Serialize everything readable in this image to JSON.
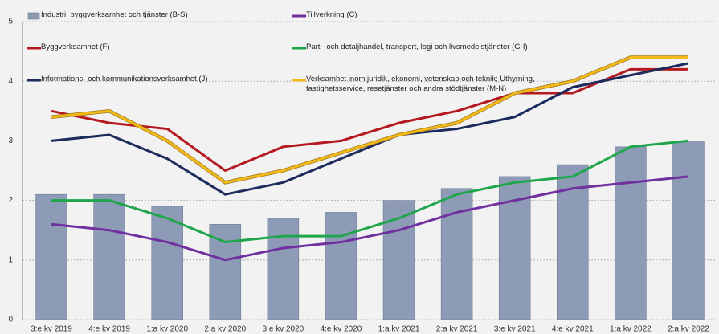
{
  "chart_data": {
    "type": "bar",
    "categories": [
      "3:e kv 2019",
      "4:e kv 2019",
      "1:a kv 2020",
      "2:a kv 2020",
      "3:e kv 2020",
      "4:e kv 2020",
      "1:a kv 2021",
      "2:a kv 2021",
      "3:e kv 2021",
      "4:e kv 2021",
      "1:a kv 2022",
      "2:a kv 2022"
    ],
    "series": [
      {
        "name": "Industri, byggverksamhet och tjänster (B-S)",
        "type": "bar",
        "color": "#8d9bb6",
        "values": [
          2.1,
          2.1,
          1.9,
          1.6,
          1.7,
          1.8,
          2.0,
          2.2,
          2.4,
          2.6,
          2.9,
          3.0
        ]
      },
      {
        "name": "Tillverkning (C)",
        "type": "line",
        "color": "#7030a0",
        "values": [
          1.6,
          1.5,
          1.3,
          1.0,
          1.2,
          1.3,
          1.5,
          1.8,
          2.0,
          2.2,
          2.3,
          2.4
        ]
      },
      {
        "name": "Byggverksamhet (F)",
        "type": "line",
        "color": "#b3191e",
        "values": [
          3.5,
          3.3,
          3.2,
          2.5,
          2.9,
          3.0,
          3.3,
          3.5,
          3.8,
          3.8,
          4.2,
          4.2
        ]
      },
      {
        "name": "Parti- och detaljhandel, transport, logi och livsmedelstjänster (G-I)",
        "type": "line",
        "color": "#1fa64a",
        "values": [
          2.0,
          2.0,
          1.7,
          1.3,
          1.4,
          1.4,
          1.7,
          2.1,
          2.3,
          2.4,
          2.9,
          3.0
        ]
      },
      {
        "name": "Informations- och kommunikationsverksamhet (J)",
        "type": "line",
        "color": "#1c2a5c",
        "values": [
          3.0,
          3.1,
          2.7,
          2.1,
          2.3,
          2.7,
          3.1,
          3.2,
          3.4,
          3.9,
          4.1,
          4.3
        ]
      },
      {
        "name": "Verksamhet inom juridik, ekonomi, vetenskap och teknik; Uthyrning, fastighetsservice, resetjänster och andra stödtjänster (M-N)",
        "type": "line",
        "color": "#f4b819",
        "values": [
          3.4,
          3.5,
          3.0,
          2.3,
          2.5,
          2.8,
          3.1,
          3.3,
          3.8,
          4.0,
          4.4,
          4.4
        ]
      }
    ],
    "ylim": [
      0,
      5
    ],
    "yticks": [
      0,
      1,
      2,
      3,
      4,
      5
    ],
    "grid": true
  }
}
